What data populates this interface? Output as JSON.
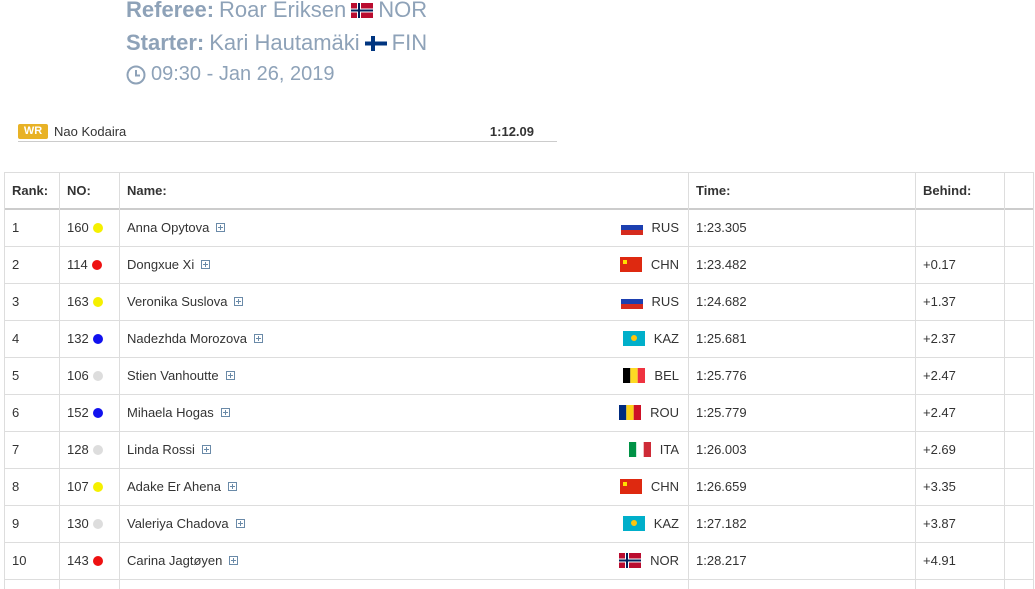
{
  "header": {
    "referee": {
      "label": "Referee:",
      "name": "Roar Eriksen",
      "country": "NOR"
    },
    "starter": {
      "label": "Starter:",
      "name": "Kari Hautamäki",
      "country": "FIN"
    },
    "datetime": "09:30 - Jan 26, 2019"
  },
  "record": {
    "badge": "WR",
    "name": "Nao Kodaira",
    "time": "1:12.09"
  },
  "table": {
    "columns": [
      "Rank:",
      "NO:",
      "Name:",
      "Time:",
      "Behind:"
    ],
    "rows": [
      {
        "rank": "1",
        "no": "160",
        "dot": "#f5f000",
        "name": "Anna Opytova",
        "country": "RUS",
        "time": "1:23.305",
        "behind": null
      },
      {
        "rank": "2",
        "no": "114",
        "dot": "#ee1111",
        "name": "Dongxue Xi",
        "country": "CHN",
        "time": "1:23.482",
        "behind": "+0.17"
      },
      {
        "rank": "3",
        "no": "163",
        "dot": "#f5f000",
        "name": "Veronika Suslova",
        "country": "RUS",
        "time": "1:24.682",
        "behind": "+1.37"
      },
      {
        "rank": "4",
        "no": "132",
        "dot": "#1111ee",
        "name": "Nadezhda Morozova",
        "country": "KAZ",
        "time": "1:25.681",
        "behind": "+2.37"
      },
      {
        "rank": "5",
        "no": "106",
        "dot": "#dddddd",
        "name": "Stien Vanhoutte",
        "country": "BEL",
        "time": "1:25.776",
        "behind": "+2.47"
      },
      {
        "rank": "6",
        "no": "152",
        "dot": "#1111ee",
        "name": "Mihaela Hogas",
        "country": "ROU",
        "time": "1:25.779",
        "behind": "+2.47"
      },
      {
        "rank": "7",
        "no": "128",
        "dot": "#dddddd",
        "name": "Linda Rossi",
        "country": "ITA",
        "time": "1:26.003",
        "behind": "+2.69"
      },
      {
        "rank": "8",
        "no": "107",
        "dot": "#f5f000",
        "name": "Adake Er Ahena",
        "country": "CHN",
        "time": "1:26.659",
        "behind": "+3.35"
      },
      {
        "rank": "9",
        "no": "130",
        "dot": "#dddddd",
        "name": "Valeriya Chadova",
        "country": "KAZ",
        "time": "1:27.182",
        "behind": "+3.87"
      },
      {
        "rank": "10",
        "no": "143",
        "dot": "#ee1111",
        "name": "Carina Jagtøyen",
        "country": "NOR",
        "time": "1:28.217",
        "behind": "+4.91"
      }
    ]
  }
}
